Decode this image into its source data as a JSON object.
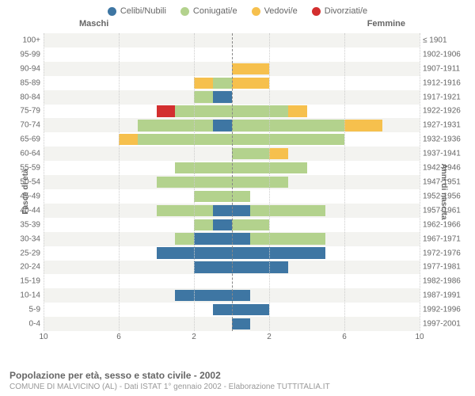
{
  "legend": [
    {
      "label": "Celibi/Nubili",
      "color": "#3e76a3"
    },
    {
      "label": "Coniugati/e",
      "color": "#b3d28d"
    },
    {
      "label": "Vedovi/e",
      "color": "#f6c04d"
    },
    {
      "label": "Divorziati/e",
      "color": "#d32f2f"
    }
  ],
  "headers": {
    "left": "Maschi",
    "right": "Femmine"
  },
  "axes": {
    "left_title": "Fasce di età",
    "right_title": "Anni di nascita",
    "x_max": 10,
    "x_ticks_left": [
      10,
      6,
      2
    ],
    "x_ticks_right": [
      2,
      6,
      10
    ]
  },
  "stripe_colors": {
    "even": "#ffffff",
    "odd": "#f3f3f0"
  },
  "grid_color": "#cccccc",
  "centerline_color": "#888888",
  "rows": [
    {
      "age": "100+",
      "birth": "≤ 1901",
      "m": [
        0,
        0,
        0,
        0
      ],
      "f": [
        0,
        0,
        0,
        0
      ]
    },
    {
      "age": "95-99",
      "birth": "1902-1906",
      "m": [
        0,
        0,
        0,
        0
      ],
      "f": [
        0,
        0,
        0,
        0
      ]
    },
    {
      "age": "90-94",
      "birth": "1907-1911",
      "m": [
        0,
        0,
        0,
        0
      ],
      "f": [
        0,
        0,
        2,
        0
      ]
    },
    {
      "age": "85-89",
      "birth": "1912-1916",
      "m": [
        0,
        1,
        1,
        0
      ],
      "f": [
        0,
        0,
        2,
        0
      ]
    },
    {
      "age": "80-84",
      "birth": "1917-1921",
      "m": [
        1,
        1,
        0,
        0
      ],
      "f": [
        0,
        0,
        0,
        0
      ]
    },
    {
      "age": "75-79",
      "birth": "1922-1926",
      "m": [
        0,
        3,
        0,
        1
      ],
      "f": [
        0,
        3,
        1,
        0
      ]
    },
    {
      "age": "70-74",
      "birth": "1927-1931",
      "m": [
        1,
        4,
        0,
        0
      ],
      "f": [
        0,
        6,
        2,
        0
      ]
    },
    {
      "age": "65-69",
      "birth": "1932-1936",
      "m": [
        0,
        5,
        1,
        0
      ],
      "f": [
        0,
        6,
        0,
        0
      ]
    },
    {
      "age": "60-64",
      "birth": "1937-1941",
      "m": [
        0,
        0,
        0,
        0
      ],
      "f": [
        0,
        2,
        1,
        0
      ]
    },
    {
      "age": "55-59",
      "birth": "1942-1946",
      "m": [
        0,
        3,
        0,
        0
      ],
      "f": [
        0,
        4,
        0,
        0
      ]
    },
    {
      "age": "50-54",
      "birth": "1947-1951",
      "m": [
        0,
        4,
        0,
        0
      ],
      "f": [
        0,
        3,
        0,
        0
      ]
    },
    {
      "age": "45-49",
      "birth": "1952-1956",
      "m": [
        0,
        2,
        0,
        0
      ],
      "f": [
        0,
        1,
        0,
        0
      ]
    },
    {
      "age": "40-44",
      "birth": "1957-1961",
      "m": [
        1,
        3,
        0,
        0
      ],
      "f": [
        1,
        4,
        0,
        0
      ]
    },
    {
      "age": "35-39",
      "birth": "1962-1966",
      "m": [
        1,
        1,
        0,
        0
      ],
      "f": [
        0,
        2,
        0,
        0
      ]
    },
    {
      "age": "30-34",
      "birth": "1967-1971",
      "m": [
        2,
        1,
        0,
        0
      ],
      "f": [
        1,
        4,
        0,
        0
      ]
    },
    {
      "age": "25-29",
      "birth": "1972-1976",
      "m": [
        4,
        0,
        0,
        0
      ],
      "f": [
        5,
        0,
        0,
        0
      ]
    },
    {
      "age": "20-24",
      "birth": "1977-1981",
      "m": [
        2,
        0,
        0,
        0
      ],
      "f": [
        3,
        0,
        0,
        0
      ]
    },
    {
      "age": "15-19",
      "birth": "1982-1986",
      "m": [
        0,
        0,
        0,
        0
      ],
      "f": [
        0,
        0,
        0,
        0
      ]
    },
    {
      "age": "10-14",
      "birth": "1987-1991",
      "m": [
        3,
        0,
        0,
        0
      ],
      "f": [
        1,
        0,
        0,
        0
      ]
    },
    {
      "age": "5-9",
      "birth": "1992-1996",
      "m": [
        1,
        0,
        0,
        0
      ],
      "f": [
        2,
        0,
        0,
        0
      ]
    },
    {
      "age": "0-4",
      "birth": "1997-2001",
      "m": [
        0,
        0,
        0,
        0
      ],
      "f": [
        1,
        0,
        0,
        0
      ]
    }
  ],
  "footer": {
    "title": "Popolazione per età, sesso e stato civile - 2002",
    "subtitle": "COMUNE DI MALVICINO (AL) - Dati ISTAT 1° gennaio 2002 - Elaborazione TUTTITALIA.IT"
  }
}
